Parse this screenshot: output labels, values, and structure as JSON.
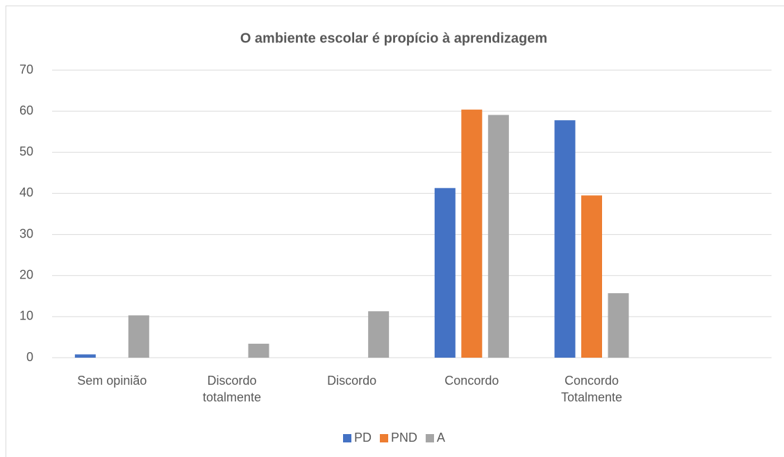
{
  "chart_data": {
    "type": "bar",
    "title": "O ambiente escolar é propício à aprendizagem",
    "categories": [
      "Sem opinião",
      "Discordo totalmente",
      "Discordo",
      "Concordo",
      "Concordo Totalmente",
      null
    ],
    "series": [
      {
        "name": "PD",
        "color": "#4472c4",
        "values": [
          0.8,
          0,
          0,
          41.3,
          57.8,
          null
        ]
      },
      {
        "name": "PND",
        "color": "#ed7d31",
        "values": [
          0,
          0,
          0,
          60.4,
          39.5,
          null
        ]
      },
      {
        "name": "A",
        "color": "#a5a5a5",
        "values": [
          10.3,
          3.4,
          11.3,
          59.1,
          15.7,
          null
        ]
      }
    ],
    "ylim": [
      0,
      70
    ],
    "yticks": [
      0,
      10,
      20,
      30,
      40,
      50,
      60,
      70
    ],
    "grid": true,
    "legend": "bottom"
  }
}
